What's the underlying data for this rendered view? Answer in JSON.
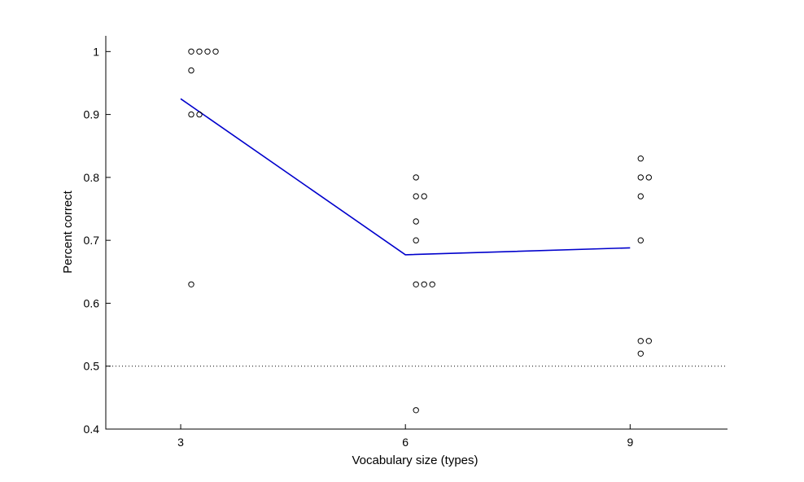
{
  "chart_data": {
    "type": "scatter",
    "title": "",
    "xlabel": "Vocabulary size (types)",
    "ylabel": "Percent correct",
    "xlim": [
      2,
      10.3
    ],
    "ylim": [
      0.4,
      1.025
    ],
    "x_ticks": [
      3,
      6,
      9
    ],
    "x_tick_labels": [
      "3",
      "6",
      "9"
    ],
    "y_ticks": [
      0.4,
      0.5,
      0.6,
      0.7,
      0.8,
      0.9,
      1.0
    ],
    "y_tick_labels": [
      "0.4",
      "0.5",
      "0.6",
      "0.7",
      "0.8",
      "0.9",
      "1"
    ],
    "grid": false,
    "chance_line": {
      "y": 0.5,
      "style": "dotted"
    },
    "mean_line": {
      "color": "#0000cc",
      "points": [
        {
          "x": 3,
          "y": 0.925
        },
        {
          "x": 6,
          "y": 0.677
        },
        {
          "x": 9,
          "y": 0.688
        }
      ]
    },
    "points": [
      {
        "x": 3,
        "y": 1.0
      },
      {
        "x": 3,
        "y": 1.0
      },
      {
        "x": 3,
        "y": 1.0
      },
      {
        "x": 3,
        "y": 1.0
      },
      {
        "x": 3,
        "y": 0.97
      },
      {
        "x": 3,
        "y": 0.9
      },
      {
        "x": 3,
        "y": 0.9
      },
      {
        "x": 3,
        "y": 0.63
      },
      {
        "x": 6,
        "y": 0.8
      },
      {
        "x": 6,
        "y": 0.77
      },
      {
        "x": 6,
        "y": 0.77
      },
      {
        "x": 6,
        "y": 0.73
      },
      {
        "x": 6,
        "y": 0.7
      },
      {
        "x": 6,
        "y": 0.63
      },
      {
        "x": 6,
        "y": 0.63
      },
      {
        "x": 6,
        "y": 0.63
      },
      {
        "x": 6,
        "y": 0.43
      },
      {
        "x": 9,
        "y": 0.83
      },
      {
        "x": 9,
        "y": 0.8
      },
      {
        "x": 9,
        "y": 0.8
      },
      {
        "x": 9,
        "y": 0.77
      },
      {
        "x": 9,
        "y": 0.7
      },
      {
        "x": 9,
        "y": 0.54
      },
      {
        "x": 9,
        "y": 0.54
      },
      {
        "x": 9,
        "y": 0.52
      }
    ]
  }
}
